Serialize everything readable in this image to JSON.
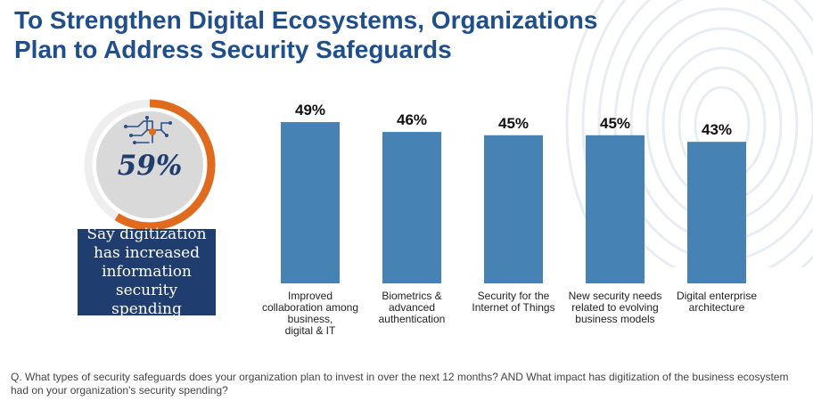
{
  "title": "To Strengthen Digital Ecosystems, Organizations Plan to Address Security Safeguards",
  "highlight": {
    "value": "59%",
    "fraction": 0.59,
    "icon": "circuit-icon",
    "text": "Say digitization has increased information security spending"
  },
  "colors": {
    "title": "#1f4e8c",
    "bar": "#4682b4",
    "donut_ring": "#e06a1e",
    "donut_track": "#eeeeee",
    "donut_fill": "#d9d9d9",
    "callout": "#1f3d6e"
  },
  "chart_data": {
    "type": "bar",
    "categories": [
      "Improved collaboration among business, digital & IT",
      "Biometrics & advanced authentication",
      "Security for the Internet of Things",
      "New security needs related to evolving business models",
      "Digital enterprise architecture"
    ],
    "category_lines": [
      [
        "Improved",
        "collaboration among",
        "business,",
        "digital & IT"
      ],
      [
        "Biometrics &",
        "advanced",
        "authentication"
      ],
      [
        "Security for the",
        "Internet of Things"
      ],
      [
        "New security needs",
        "related to evolving",
        "business models"
      ],
      [
        "Digital enterprise",
        "architecture"
      ]
    ],
    "values": [
      49,
      46,
      45,
      45,
      43
    ],
    "data_labels": [
      "49%",
      "46%",
      "45%",
      "45%",
      "43%"
    ],
    "ylim": [
      0,
      49
    ],
    "grid": false,
    "legend": "none"
  },
  "question": "Q. What types of security safeguards does your organization plan to invest in over the next 12 months? AND What impact has digitization of the business ecosystem had on your organization's security spending?"
}
